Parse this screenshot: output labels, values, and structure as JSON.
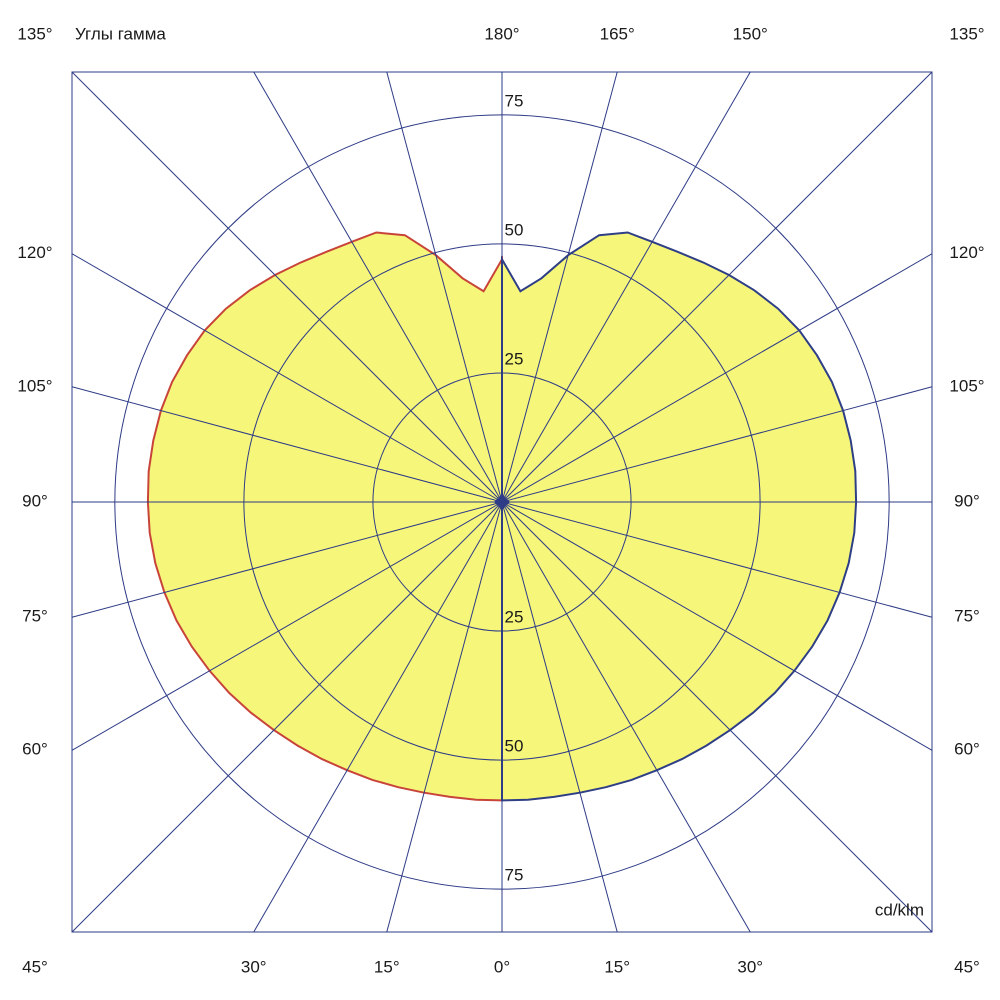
{
  "chart_data": {
    "type": "polar",
    "title": "Углы гамма",
    "unit_label": "cd/klm",
    "fill": "#f6f67a",
    "x": [
      0,
      5,
      10,
      15,
      20,
      25,
      30,
      35,
      40,
      45,
      50,
      55,
      60,
      65,
      70,
      75,
      80,
      85,
      90,
      95,
      100,
      105,
      110,
      115,
      120,
      125,
      130,
      135,
      140,
      145,
      150,
      155,
      160,
      165,
      170,
      175,
      180
    ],
    "series": [
      {
        "color": "#c8443a",
        "values": [
          57.8,
          57.9,
          58,
          58.3,
          58.8,
          59.4,
          60,
          60.8,
          61.6,
          62.5,
          63.5,
          64.5,
          65.4,
          66.3,
          67.1,
          67.7,
          68.2,
          68.5,
          68.6,
          68.7,
          68.6,
          68.4,
          68,
          67.3,
          66.5,
          65.3,
          63.8,
          62.2,
          60.6,
          59.2,
          58.2,
          57.6,
          55,
          49.5,
          44,
          41,
          47
        ]
      },
      {
        "color": "#2f3f86",
        "values": [
          57.8,
          57.9,
          58,
          58.3,
          58.8,
          59.4,
          60,
          60.8,
          61.6,
          62.5,
          63.5,
          64.5,
          65.4,
          66.3,
          67.1,
          67.7,
          68.2,
          68.5,
          68.6,
          68.7,
          68.6,
          68.4,
          68,
          67.3,
          66.5,
          65.3,
          63.8,
          62.2,
          60.6,
          59.2,
          58.2,
          57.6,
          55,
          49.5,
          44,
          41,
          47
        ]
      }
    ],
    "rlim": [
      0,
      83.3
    ],
    "rticks": [
      25,
      50,
      75
    ],
    "angle_ticks": [
      {
        "value": 0,
        "label": "0°"
      },
      {
        "value": 15,
        "label": "15°"
      },
      {
        "value": 30,
        "label": "30°"
      },
      {
        "value": 45,
        "label": "45°"
      },
      {
        "value": 60,
        "label": "60°"
      },
      {
        "value": 75,
        "label": "75°"
      },
      {
        "value": 90,
        "label": "90°"
      },
      {
        "value": 105,
        "label": "105°"
      },
      {
        "value": 120,
        "label": "120°"
      },
      {
        "value": 135,
        "label": "135°"
      },
      {
        "value": 150,
        "label": "150°"
      },
      {
        "value": 165,
        "label": "165°"
      },
      {
        "value": 180,
        "label": "180°"
      }
    ]
  }
}
